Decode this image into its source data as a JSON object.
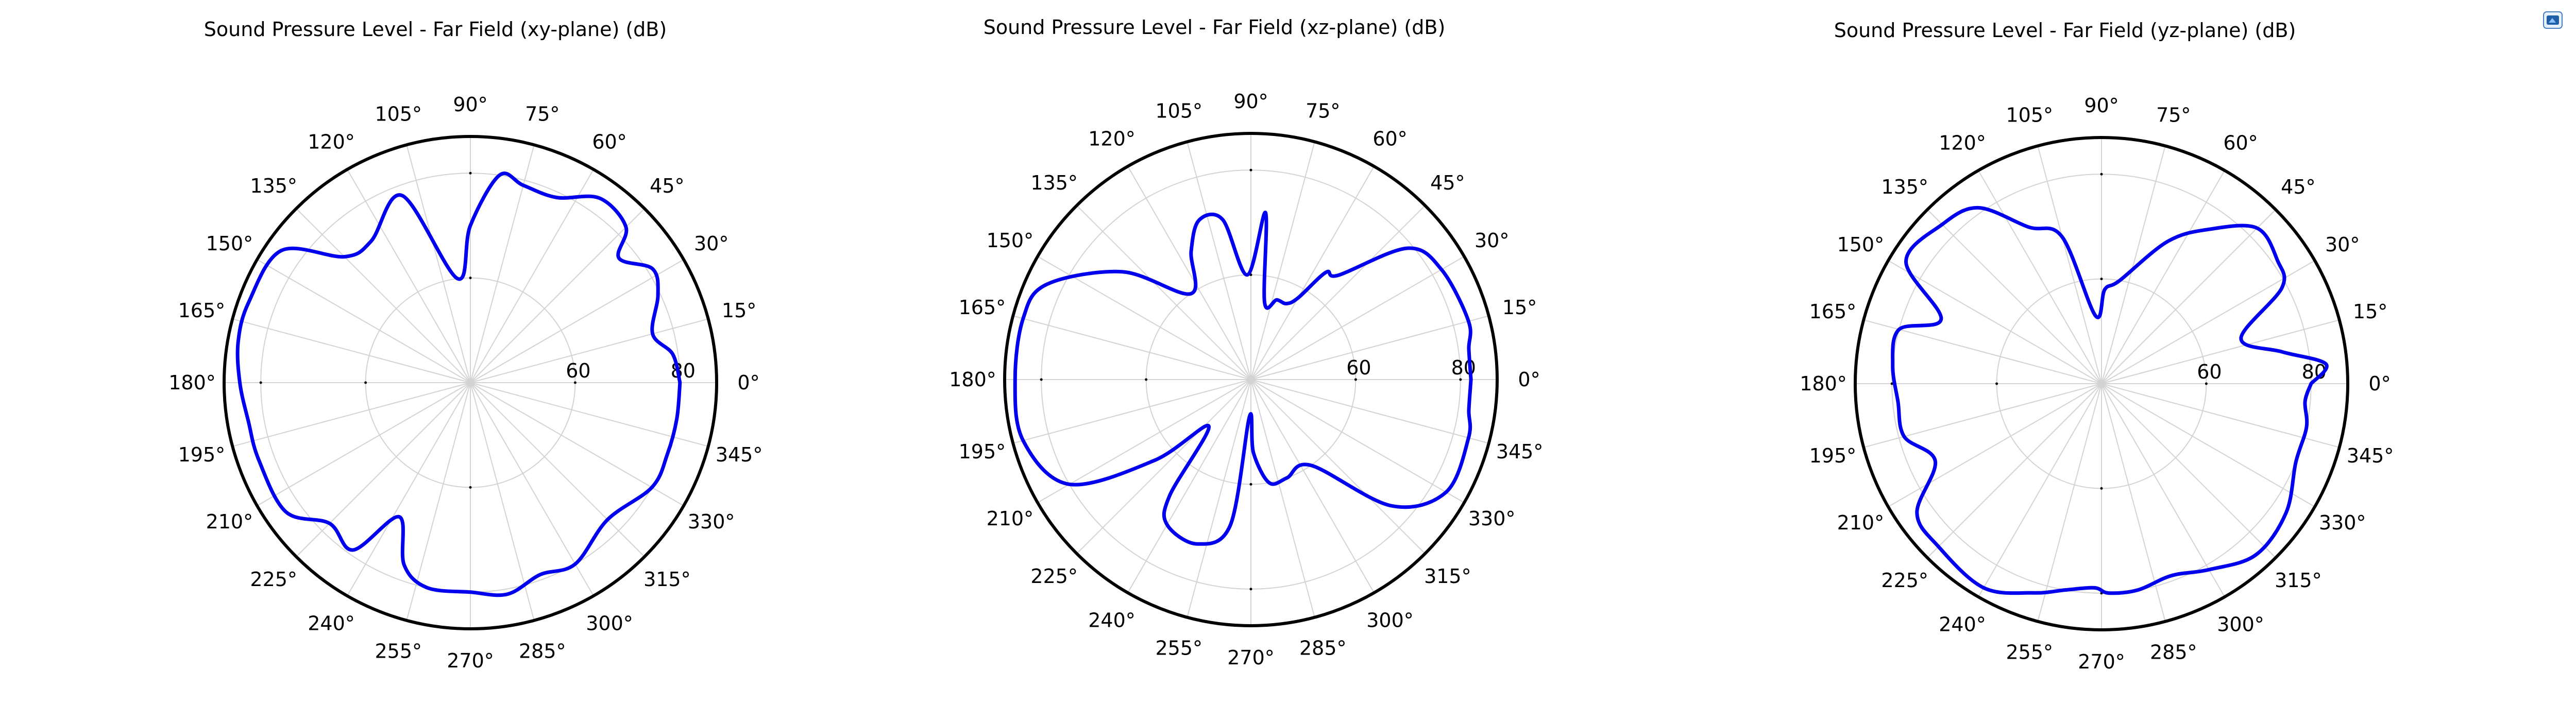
{
  "chart_data": [
    {
      "type": "polar",
      "title": "Sound Pressure Level - Far Field (xy-plane) (dB)",
      "r_range": [
        40,
        87
      ],
      "r_ticks": [
        60,
        80
      ],
      "theta_ticks": [
        "0°",
        "15°",
        "30°",
        "45°",
        "60°",
        "75°",
        "90°",
        "105°",
        "120°",
        "135°",
        "150°",
        "165°",
        "180°",
        "195°",
        "210°",
        "225°",
        "240°",
        "255°",
        "270°",
        "285°",
        "300°",
        "315°",
        "330°",
        "345°"
      ],
      "theta_tick_values": [
        0,
        15,
        30,
        45,
        60,
        75,
        90,
        105,
        120,
        135,
        150,
        165,
        180,
        195,
        210,
        225,
        240,
        255,
        270,
        285,
        300,
        315,
        330,
        345
      ],
      "grid": true,
      "series": [
        {
          "color": "#0000ee",
          "points": [
            [
              0,
              80
            ],
            [
              8,
              79
            ],
            [
              15,
              76
            ],
            [
              25,
              79.5
            ],
            [
              32,
              81
            ],
            [
              40,
              77
            ],
            [
              45,
              82
            ],
            [
              55,
              83
            ],
            [
              65,
              79
            ],
            [
              75,
              79
            ],
            [
              82,
              80
            ],
            [
              90,
              70
            ],
            [
              97,
              60
            ],
            [
              110,
              78
            ],
            [
              125,
              73
            ],
            [
              135,
              74
            ],
            [
              145,
              84
            ],
            [
              160,
              85
            ],
            [
              170,
              85
            ],
            [
              180,
              84
            ],
            [
              190,
              83
            ],
            [
              200,
              83
            ],
            [
              215,
              83
            ],
            [
              225,
              78
            ],
            [
              235,
              79
            ],
            [
              242,
              69
            ],
            [
              250,
              77
            ],
            [
              258,
              80
            ],
            [
              270,
              80
            ],
            [
              280,
              81
            ],
            [
              290,
              79
            ],
            [
              300,
              80
            ],
            [
              315,
              77
            ],
            [
              330,
              80
            ],
            [
              340,
              80
            ],
            [
              350,
              80
            ],
            [
              360,
              80
            ]
          ]
        }
      ]
    },
    {
      "type": "polar",
      "title": "Sound Pressure Level - Far Field (xz-plane) (dB)",
      "r_range": [
        40,
        87
      ],
      "r_ticks": [
        60,
        80
      ],
      "theta_ticks": [
        "0°",
        "15°",
        "30°",
        "45°",
        "60°",
        "75°",
        "90°",
        "105°",
        "120°",
        "135°",
        "150°",
        "165°",
        "180°",
        "195°",
        "210°",
        "225°",
        "240°",
        "255°",
        "270°",
        "285°",
        "300°",
        "315°",
        "330°",
        "345°"
      ],
      "theta_tick_values": [
        0,
        15,
        30,
        45,
        60,
        75,
        90,
        105,
        120,
        135,
        150,
        165,
        180,
        195,
        210,
        225,
        240,
        255,
        270,
        285,
        300,
        315,
        330,
        345
      ],
      "grid": true,
      "series": [
        {
          "color": "#0000ee",
          "points": [
            [
              0,
              82
            ],
            [
              8,
              82
            ],
            [
              15,
              83
            ],
            [
              30,
              82
            ],
            [
              40,
              79
            ],
            [
              50,
              66
            ],
            [
              55,
              65
            ],
            [
              60,
              58
            ],
            [
              65,
              56
            ],
            [
              72,
              56
            ],
            [
              80,
              55
            ],
            [
              85,
              72
            ],
            [
              92,
              60
            ],
            [
              100,
              71
            ],
            [
              108,
              72
            ],
            [
              115,
              67
            ],
            [
              125,
              60
            ],
            [
              140,
              72
            ],
            [
              155,
              83
            ],
            [
              165,
              85
            ],
            [
              180,
              85
            ],
            [
              195,
              85
            ],
            [
              210,
              80
            ],
            [
              220,
              64
            ],
            [
              228,
              52
            ],
            [
              235,
              67
            ],
            [
              240,
              72
            ],
            [
              252,
              73
            ],
            [
              262,
              68
            ],
            [
              268,
              47
            ],
            [
              272,
              54
            ],
            [
              280,
              60
            ],
            [
              290,
              60
            ],
            [
              305,
              60
            ],
            [
              318,
              76
            ],
            [
              330,
              83
            ],
            [
              345,
              83
            ],
            [
              352,
              82
            ],
            [
              360,
              82
            ]
          ]
        }
      ]
    },
    {
      "type": "polar",
      "title": "Sound Pressure Level - Far Field (yz-plane) (dB)",
      "r_range": [
        40,
        87
      ],
      "r_ticks": [
        60,
        80
      ],
      "theta_ticks": [
        "0°",
        "15°",
        "30°",
        "45°",
        "60°",
        "75°",
        "90°",
        "105°",
        "120°",
        "135°",
        "150°",
        "165°",
        "180°",
        "195°",
        "210°",
        "225°",
        "240°",
        "255°",
        "270°",
        "285°",
        "300°",
        "315°",
        "330°",
        "345°"
      ],
      "theta_tick_values": [
        0,
        15,
        30,
        45,
        60,
        75,
        90,
        105,
        120,
        135,
        150,
        165,
        180,
        195,
        210,
        225,
        240,
        255,
        270,
        285,
        300,
        315,
        330,
        345
      ],
      "grid": true,
      "series": [
        {
          "color": "#0000ee",
          "points": [
            [
              0,
              80
            ],
            [
              5,
              83
            ],
            [
              10,
              75
            ],
            [
              18,
              68
            ],
            [
              28,
              79
            ],
            [
              35,
              81
            ],
            [
              45,
              82
            ],
            [
              55,
              76
            ],
            [
              65,
              70
            ],
            [
              80,
              60
            ],
            [
              88,
              58
            ],
            [
              95,
              53
            ],
            [
              105,
              69
            ],
            [
              115,
              73
            ],
            [
              125,
              81
            ],
            [
              135,
              83
            ],
            [
              148,
              84
            ],
            [
              158,
              73
            ],
            [
              165,
              80
            ],
            [
              175,
              80
            ],
            [
              185,
              79
            ],
            [
              195,
              79
            ],
            [
              205,
              75
            ],
            [
              215,
              83
            ],
            [
              225,
              84
            ],
            [
              240,
              85
            ],
            [
              252,
              82
            ],
            [
              260,
              80
            ],
            [
              268,
              79
            ],
            [
              272,
              80
            ],
            [
              280,
              80
            ],
            [
              290,
              79
            ],
            [
              300,
              81
            ],
            [
              312,
              84
            ],
            [
              325,
              83
            ],
            [
              338,
              80
            ],
            [
              348,
              80
            ],
            [
              355,
              79
            ],
            [
              360,
              80
            ]
          ]
        }
      ]
    }
  ],
  "icons": {
    "top_right": "app-badge-icon"
  }
}
